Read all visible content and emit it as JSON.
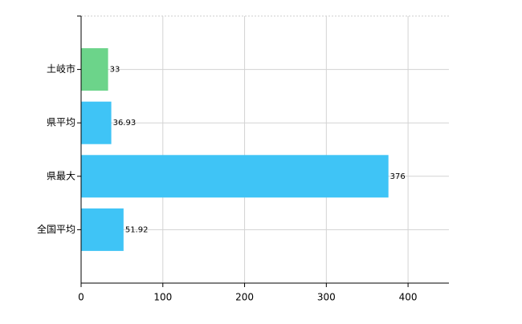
{
  "chart_data": {
    "type": "bar",
    "orientation": "horizontal",
    "categories": [
      "土岐市",
      "県平均",
      "県最大",
      "全国平均"
    ],
    "values": [
      33,
      36.93,
      376,
      51.92
    ],
    "colors": [
      "#6cd48a",
      "#3fc4f6",
      "#3fc4f6",
      "#3fc4f6"
    ],
    "xlim": [
      0,
      450
    ],
    "xticks": [
      0,
      100,
      200,
      300,
      400
    ],
    "grid": true
  }
}
